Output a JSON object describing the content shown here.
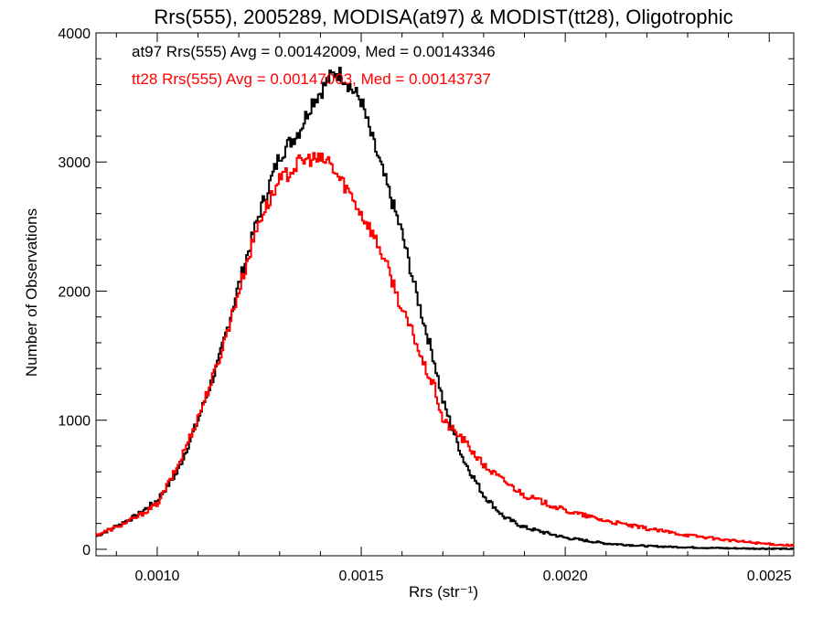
{
  "chart_data": {
    "type": "line",
    "title": "Rrs(555), 2005289, MODISA(at97) & MODIST(tt28), Oligotrophic",
    "xlabel": "Rrs (str⁻¹)",
    "ylabel": "Number of Observations",
    "xlim": [
      0.00085,
      0.00256
    ],
    "ylim": [
      -50,
      4000
    ],
    "x_ticks": [
      0.001,
      0.0015,
      0.002,
      0.0025
    ],
    "x_tick_labels": [
      "0.0010",
      "0.0015",
      "0.0020",
      "0.0025"
    ],
    "y_ticks": [
      0,
      1000,
      2000,
      3000,
      4000
    ],
    "y_tick_labels": [
      "0",
      "1000",
      "2000",
      "3000",
      "4000"
    ],
    "grid": false,
    "legend_position": "top-left",
    "series": [
      {
        "name": "at97 Rrs(555)",
        "legend_text": "at97 Rrs(555) Avg = 0.00142009, Med = 0.00143346",
        "color": "#000000",
        "style": "step",
        "x": [
          0.00085,
          0.0009,
          0.00095,
          0.001,
          0.00105,
          0.0011,
          0.00115,
          0.0012,
          0.00125,
          0.0013,
          0.00135,
          0.00138,
          0.0014,
          0.00142,
          0.00144,
          0.00146,
          0.00148,
          0.0015,
          0.00152,
          0.00155,
          0.00158,
          0.0016,
          0.00163,
          0.00165,
          0.00168,
          0.0017,
          0.00175,
          0.0018,
          0.00185,
          0.0019,
          0.002,
          0.0021,
          0.0022,
          0.0023,
          0.0024,
          0.0025,
          0.00256
        ],
        "y": [
          100,
          180,
          260,
          380,
          600,
          1000,
          1450,
          2050,
          2600,
          3050,
          3250,
          3470,
          3540,
          3640,
          3700,
          3650,
          3550,
          3480,
          3250,
          2950,
          2650,
          2450,
          2050,
          1800,
          1450,
          1150,
          700,
          420,
          250,
          170,
          90,
          45,
          25,
          15,
          8,
          5,
          3
        ]
      },
      {
        "name": "tt28 Rrs(555)",
        "legend_text": "tt28 Rrs(555) Avg = 0.00147003, Med = 0.00143737",
        "color": "#ff0000",
        "style": "step",
        "x": [
          0.00085,
          0.0009,
          0.00095,
          0.001,
          0.00105,
          0.0011,
          0.00115,
          0.0012,
          0.00125,
          0.0013,
          0.00135,
          0.00138,
          0.0014,
          0.00142,
          0.00144,
          0.00146,
          0.00148,
          0.0015,
          0.00152,
          0.00155,
          0.00158,
          0.0016,
          0.00163,
          0.00165,
          0.00168,
          0.0017,
          0.00175,
          0.0018,
          0.00185,
          0.0019,
          0.002,
          0.0021,
          0.0022,
          0.0023,
          0.0024,
          0.0025,
          0.00256
        ],
        "y": [
          110,
          170,
          250,
          350,
          640,
          1020,
          1450,
          2000,
          2550,
          2850,
          3000,
          3030,
          3010,
          3010,
          2900,
          2820,
          2720,
          2600,
          2500,
          2300,
          2050,
          1850,
          1650,
          1450,
          1250,
          1000,
          850,
          650,
          530,
          420,
          300,
          220,
          160,
          110,
          70,
          40,
          30
        ]
      }
    ]
  }
}
